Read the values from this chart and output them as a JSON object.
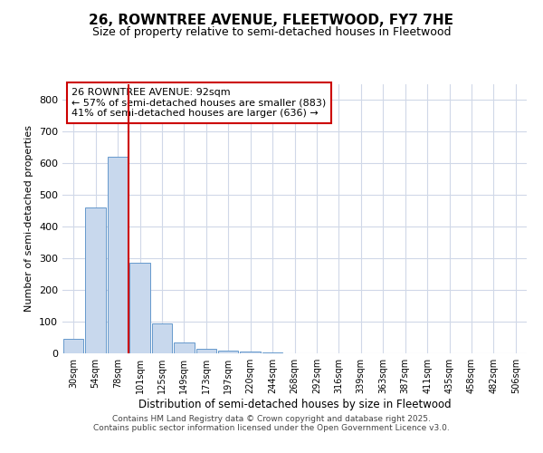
{
  "title1": "26, ROWNTREE AVENUE, FLEETWOOD, FY7 7HE",
  "title2": "Size of property relative to semi-detached houses in Fleetwood",
  "xlabel": "Distribution of semi-detached houses by size in Fleetwood",
  "ylabel": "Number of semi-detached properties",
  "categories": [
    "30sqm",
    "54sqm",
    "78sqm",
    "101sqm",
    "125sqm",
    "149sqm",
    "173sqm",
    "197sqm",
    "220sqm",
    "244sqm",
    "268sqm",
    "292sqm",
    "316sqm",
    "339sqm",
    "363sqm",
    "387sqm",
    "411sqm",
    "435sqm",
    "458sqm",
    "482sqm",
    "506sqm"
  ],
  "values": [
    45,
    460,
    620,
    285,
    95,
    35,
    15,
    10,
    7,
    3,
    1,
    0,
    0,
    0,
    0,
    0,
    0,
    0,
    0,
    0,
    0
  ],
  "bar_color": "#c8d8ed",
  "bar_edge_color": "#6699cc",
  "vline_color": "#cc0000",
  "vline_x": 2.5,
  "annotation_title": "26 ROWNTREE AVENUE: 92sqm",
  "annotation_line2": "← 57% of semi-detached houses are smaller (883)",
  "annotation_line3": "41% of semi-detached houses are larger (636) →",
  "annotation_box_color": "#ffffff",
  "annotation_box_edge": "#cc0000",
  "ylim": [
    0,
    850
  ],
  "yticks": [
    0,
    100,
    200,
    300,
    400,
    500,
    600,
    700,
    800
  ],
  "footer1": "Contains HM Land Registry data © Crown copyright and database right 2025.",
  "footer2": "Contains public sector information licensed under the Open Government Licence v3.0.",
  "bg_color": "#ffffff",
  "plot_bg_color": "#ffffff",
  "grid_color": "#d0d8e8"
}
